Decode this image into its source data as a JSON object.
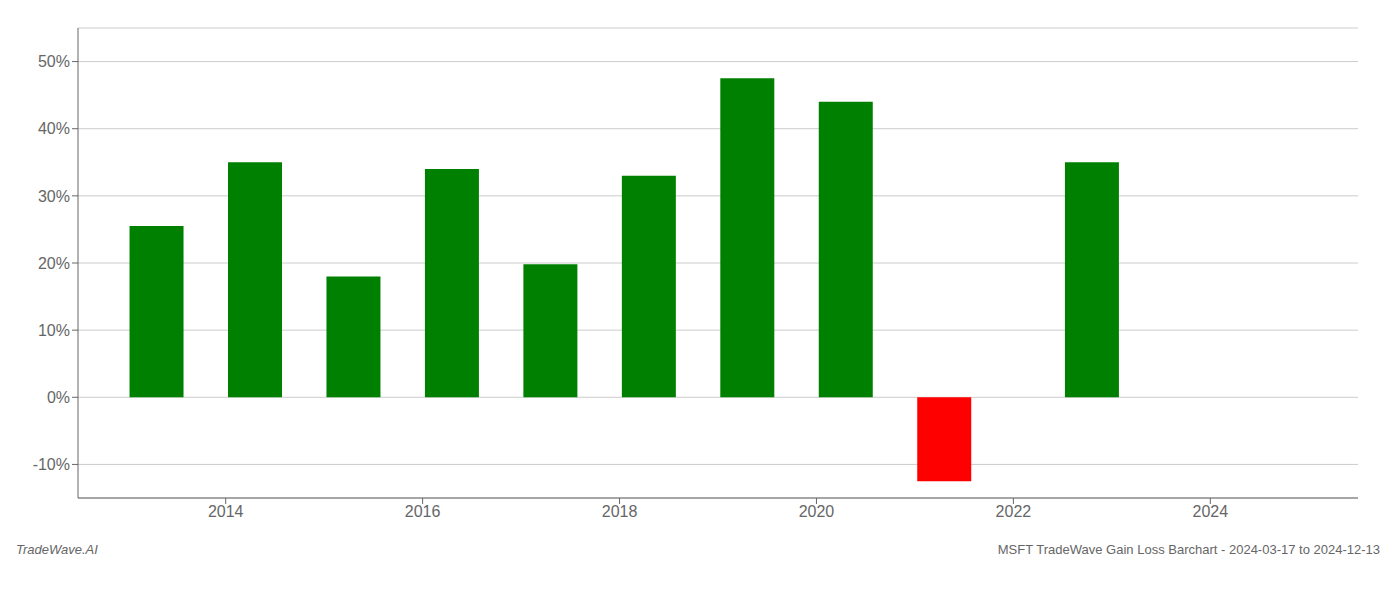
{
  "chart_data": {
    "type": "bar",
    "x": [
      2013.3,
      2014.3,
      2015.3,
      2016.3,
      2017.3,
      2018.3,
      2019.3,
      2020.3,
      2021.3,
      2022.8
    ],
    "values": [
      25.5,
      35.0,
      18.0,
      34.0,
      19.8,
      33.0,
      47.5,
      44.0,
      -12.5,
      35.0
    ],
    "colors": [
      "#008000",
      "#008000",
      "#008000",
      "#008000",
      "#008000",
      "#008000",
      "#008000",
      "#008000",
      "#ff0000",
      "#008000"
    ],
    "xlim": [
      2012.5,
      2025.5
    ],
    "xticks": [
      2014,
      2016,
      2018,
      2020,
      2022,
      2024
    ],
    "ylim": [
      -15,
      55
    ],
    "yticks": [
      {
        "value": -10,
        "label": "-10%"
      },
      {
        "value": 0,
        "label": "0%"
      },
      {
        "value": 10,
        "label": "10%"
      },
      {
        "value": 20,
        "label": "20%"
      },
      {
        "value": 30,
        "label": "30%"
      },
      {
        "value": 40,
        "label": "40%"
      },
      {
        "value": 50,
        "label": "50%"
      }
    ],
    "grid": true,
    "annotations": [
      "TradeWave.AI",
      "MSFT TradeWave Gain Loss Barchart - 2024-03-17 to 2024-12-13"
    ]
  }
}
